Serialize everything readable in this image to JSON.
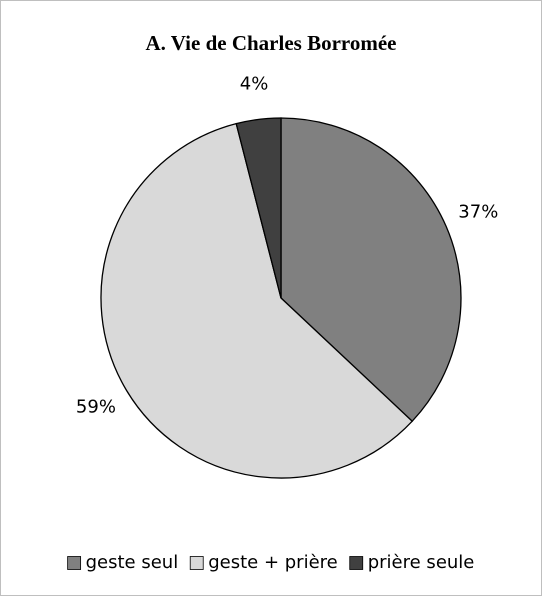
{
  "chart_data": {
    "type": "pie",
    "title": "A. Vie de Charles Borromée",
    "categories": [
      "geste seul",
      "geste + prière",
      "prière seule"
    ],
    "values": [
      37,
      59,
      4
    ],
    "value_labels": [
      "37%",
      "59%",
      "4%"
    ],
    "colors": [
      "#808080",
      "#d9d9d9",
      "#404040"
    ],
    "legend": "bottom"
  }
}
